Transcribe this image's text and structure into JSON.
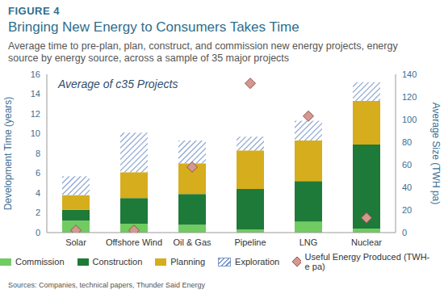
{
  "figure_label": "FIGURE 4",
  "source": "Sources: Companies, technical papers, Thunder Said Energy",
  "chart_data": {
    "type": "bar",
    "title": "Bringing New Energy to Consumers Takes Time",
    "subtitle": "Average time to pre-plan, plan, construct, and commission new energy projects, energy source by energy source, across a sample of 35 major projects",
    "annotation": "Average of c35 Projects",
    "y_label": "Development Time (years)",
    "y2_label": "Average Size (TWH pa)",
    "categories": [
      "Solar",
      "Offshore Wind",
      "Oil & Gas",
      "Pipeline",
      "LNG",
      "Nuclear"
    ],
    "stacked": true,
    "grid": false,
    "legend": "bottom",
    "ylim": [
      0,
      16
    ],
    "yticks": [
      0,
      2,
      4,
      6,
      8,
      10,
      12,
      14,
      16
    ],
    "y2lim": [
      0,
      140
    ],
    "y2ticks": [
      0,
      20,
      40,
      60,
      80,
      100,
      120,
      140
    ],
    "series": [
      {
        "name": "Commission",
        "type": "bar",
        "color": "#70cc60",
        "values": [
          1.2,
          0.9,
          0.8,
          0.3,
          1.1,
          0.4
        ]
      },
      {
        "name": "Construction",
        "type": "bar",
        "color": "#1e7a38",
        "values": [
          1.1,
          2.6,
          3.1,
          4.1,
          4.1,
          8.5
        ]
      },
      {
        "name": "Planning",
        "type": "bar",
        "color": "#d6ad1c",
        "values": [
          1.5,
          2.6,
          3.1,
          3.9,
          4.1,
          4.4
        ]
      },
      {
        "name": "Exploration",
        "type": "bar",
        "color": "#7d9acb",
        "values": [
          1.9,
          4.0,
          2.3,
          1.4,
          2.0,
          1.9
        ]
      },
      {
        "name": "Useful Energy Produced (TWH-e pa)",
        "type": "scatter",
        "axis": "y2",
        "marker": "diamond",
        "color": "#d09a92",
        "values": [
          2,
          2,
          58,
          132,
          103,
          13
        ]
      }
    ]
  }
}
